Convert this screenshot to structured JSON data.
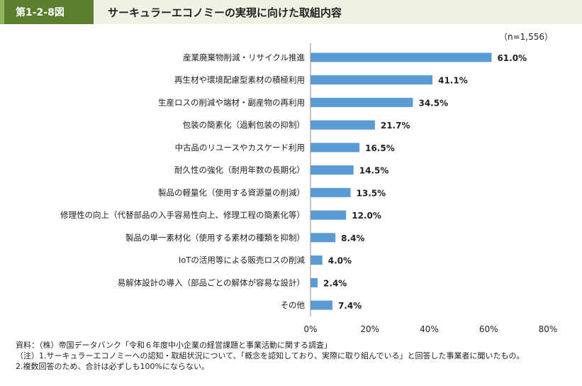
{
  "figure": {
    "number": "第1-2-8図",
    "title": "サーキュラーエコノミーの実現に向けた取組内容"
  },
  "chart_data": {
    "type": "bar",
    "orientation": "horizontal",
    "sample_note": "（n=1,556）",
    "categories": [
      "産業廃棄物削減・リサイクル推進",
      "再生材や環境配慮型素材の積極利用",
      "生産ロスの削減や端材・副産物の再利用",
      "包装の簡素化（過剰包装の抑制）",
      "中古品のリユースやカスケード利用",
      "耐久性の強化（耐用年数の長期化）",
      "製品の軽量化（使用する資源量の削減）",
      "修理性の向上（代替部品の入手容易性向上、修理工程の簡素化等）",
      "製品の単一素材化（使用する素材の種類を抑制）",
      "IoTの活用等による販売ロスの削減",
      "易解体設計の導入（部品ごとの解体が容易な設計）",
      "その他"
    ],
    "values": [
      61.0,
      41.1,
      34.5,
      21.7,
      16.5,
      14.5,
      13.5,
      12.0,
      8.4,
      4.0,
      2.4,
      7.4
    ],
    "value_labels": [
      "61.0%",
      "41.1%",
      "34.5%",
      "21.7%",
      "16.5%",
      "14.5%",
      "13.5%",
      "12.0%",
      "8.4%",
      "4.0%",
      "2.4%",
      "7.4%"
    ],
    "xlim": [
      0,
      80
    ],
    "xticks": [
      "0%",
      "20%",
      "40%",
      "60%",
      "80%"
    ],
    "grid": false,
    "bar_color": "#5b9bd5"
  },
  "notes": {
    "source": "資料：（株）帝国データバンク「令和６年度中小企業の経営課題と事業活動に関する調査」",
    "note1": "（注）1.サーキュラーエコノミーへの認知・取組状況について、「概念を認知しており、実際に取り組んでいる」と回答した事業者に聞いたもの。",
    "note2": "2.複数回答のため、合計は必ずしも100%にならない。"
  }
}
